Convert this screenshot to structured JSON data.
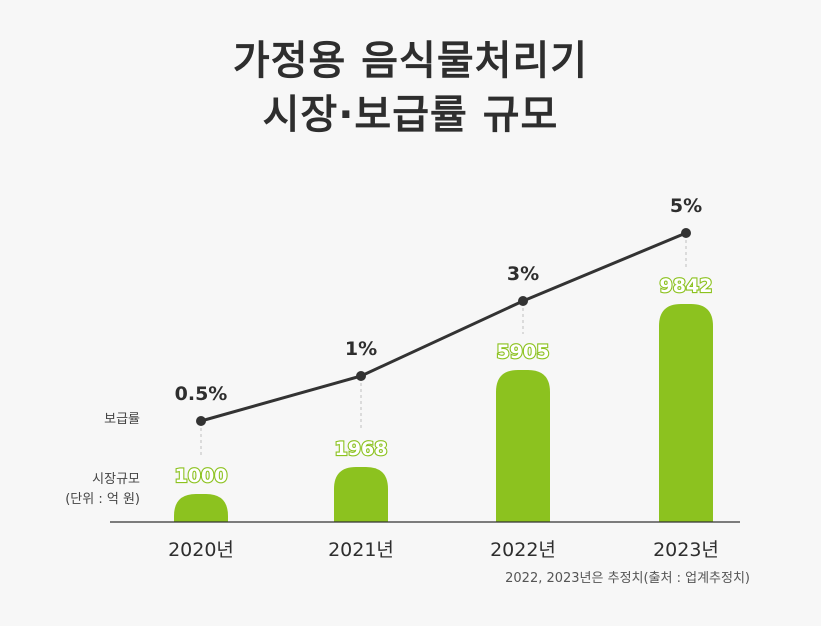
{
  "title": {
    "line1": "가정용 음식물처리기",
    "line2": "시장·보급률 규모"
  },
  "footnote": "2022, 2023년은 추정치(출처 : 업계추정치)",
  "colors": {
    "bar": "#8cc21f",
    "bar_label": "#8cc21f",
    "line": "#333333",
    "text": "#2e2e2e",
    "axis": "#333333",
    "background": "#f7f7f7"
  },
  "chart_data": {
    "type": "bar",
    "categories": [
      "2020년",
      "2021년",
      "2022년",
      "2023년"
    ],
    "series": [
      {
        "name": "시장규모",
        "type": "bar",
        "values": [
          1000,
          1968,
          5905,
          9842
        ],
        "labels": [
          "1000",
          "1968",
          "5905",
          "9842"
        ]
      },
      {
        "name": "보급률",
        "type": "line",
        "values": [
          0.5,
          1,
          3,
          5
        ],
        "labels": [
          "0.5%",
          "1%",
          "3%",
          "5%"
        ]
      }
    ],
    "legend_labels": {
      "line": "보급률",
      "bar_line1": "시장규모",
      "bar_line2": "(단위 : 억 원)"
    },
    "title": "가정용 음식물처리기 시장·보급률 규모",
    "xlabel": "",
    "ylabel": "",
    "grid": false
  }
}
